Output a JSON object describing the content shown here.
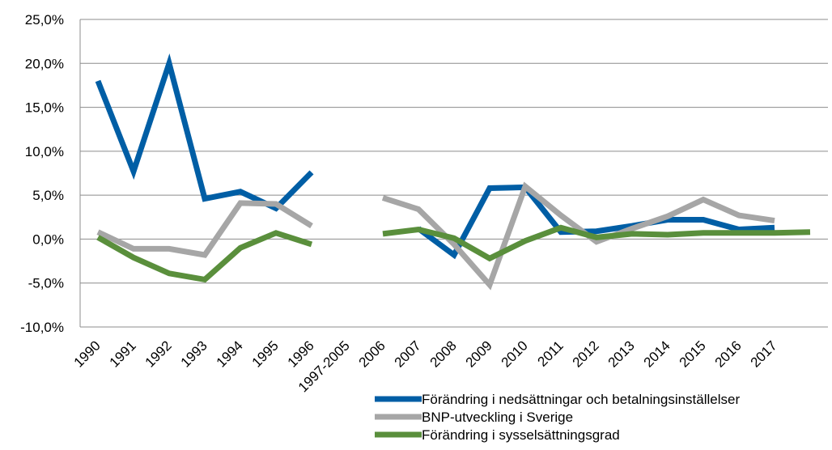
{
  "chart_data": {
    "type": "line",
    "categories": [
      "1990",
      "1991",
      "1992",
      "1993",
      "1994",
      "1995",
      "1996",
      "1997-2005",
      "2006",
      "2007",
      "2008",
      "2009",
      "2010",
      "2011",
      "2012",
      "2013",
      "2014",
      "2015",
      "2016",
      "2017",
      ""
    ],
    "yticks": [
      "25,0%",
      "20,0%",
      "15,0%",
      "10,0%",
      "5,0%",
      "0,0%",
      "-5,0%",
      "-10,0%"
    ],
    "ylim": [
      -10,
      25
    ],
    "grid": true,
    "legend_position": "bottom-right",
    "series": [
      {
        "name": "Förändring i nedsättningar och betalningsinställelser",
        "color": "#005EA5",
        "values": [
          18.0,
          7.7,
          20.0,
          4.6,
          5.4,
          3.5,
          7.6,
          null,
          null,
          1.2,
          -1.8,
          5.8,
          5.9,
          0.8,
          0.9,
          1.5,
          2.2,
          2.2,
          1.1,
          1.3,
          null
        ]
      },
      {
        "name": "BNP-utveckling i Sverige",
        "color": "#A6A6A6",
        "values": [
          0.8,
          -1.1,
          -1.1,
          -1.8,
          4.1,
          4.0,
          1.5,
          null,
          4.7,
          3.4,
          -0.6,
          -5.2,
          6.0,
          2.7,
          -0.3,
          1.2,
          2.6,
          4.5,
          2.7,
          2.1,
          null
        ]
      },
      {
        "name": "Förändring i sysselsättningsgrad",
        "color": "#5A8F3C",
        "values": [
          0.2,
          -2.1,
          -3.9,
          -4.6,
          -1.0,
          0.7,
          -0.6,
          null,
          0.6,
          1.1,
          0.1,
          -2.2,
          -0.2,
          1.3,
          0.2,
          0.6,
          0.5,
          0.7,
          0.7,
          0.7,
          0.8
        ]
      }
    ]
  }
}
